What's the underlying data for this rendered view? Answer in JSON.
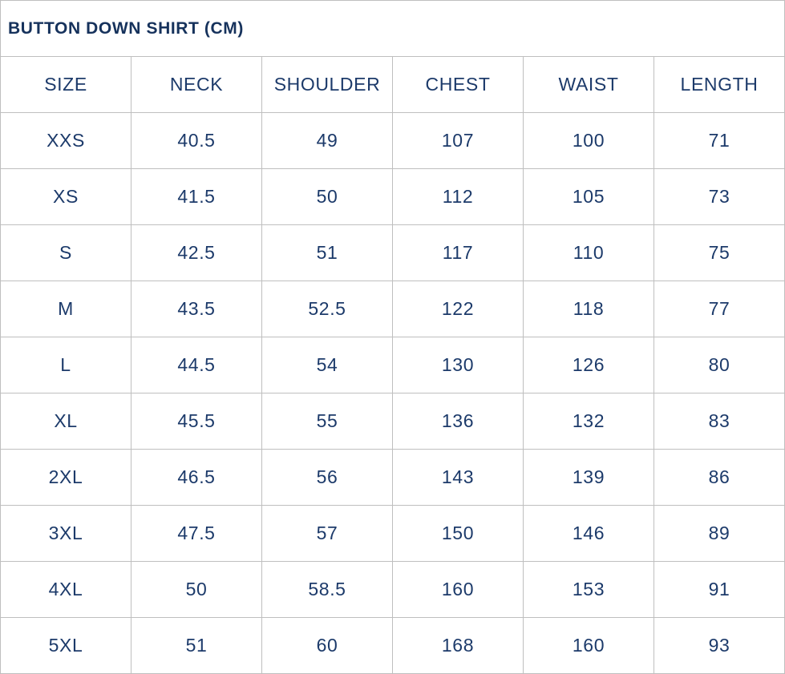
{
  "title": "BUTTON DOWN SHIRT (CM)",
  "units": "cm",
  "chart_data": {
    "type": "table",
    "title": "BUTTON DOWN SHIRT (CM)",
    "columns": [
      "SIZE",
      "NECK",
      "SHOULDER",
      "CHEST",
      "WAIST",
      "LENGTH"
    ],
    "rows": [
      [
        "XXS",
        "40.5",
        "49",
        "107",
        "100",
        "71"
      ],
      [
        "XS",
        "41.5",
        "50",
        "112",
        "105",
        "73"
      ],
      [
        "S",
        "42.5",
        "51",
        "117",
        "110",
        "75"
      ],
      [
        "M",
        "43.5",
        "52.5",
        "122",
        "118",
        "77"
      ],
      [
        "L",
        "44.5",
        "54",
        "130",
        "126",
        "80"
      ],
      [
        "XL",
        "45.5",
        "55",
        "136",
        "132",
        "83"
      ],
      [
        "2XL",
        "46.5",
        "56",
        "143",
        "139",
        "86"
      ],
      [
        "3XL",
        "47.5",
        "57",
        "150",
        "146",
        "89"
      ],
      [
        "4XL",
        "50",
        "58.5",
        "160",
        "153",
        "91"
      ],
      [
        "5XL",
        "51",
        "60",
        "168",
        "160",
        "93"
      ]
    ]
  },
  "colors": {
    "text": "#1c3a6a",
    "title_text": "#16325c",
    "border": "#bfbfbf",
    "background": "#ffffff"
  }
}
